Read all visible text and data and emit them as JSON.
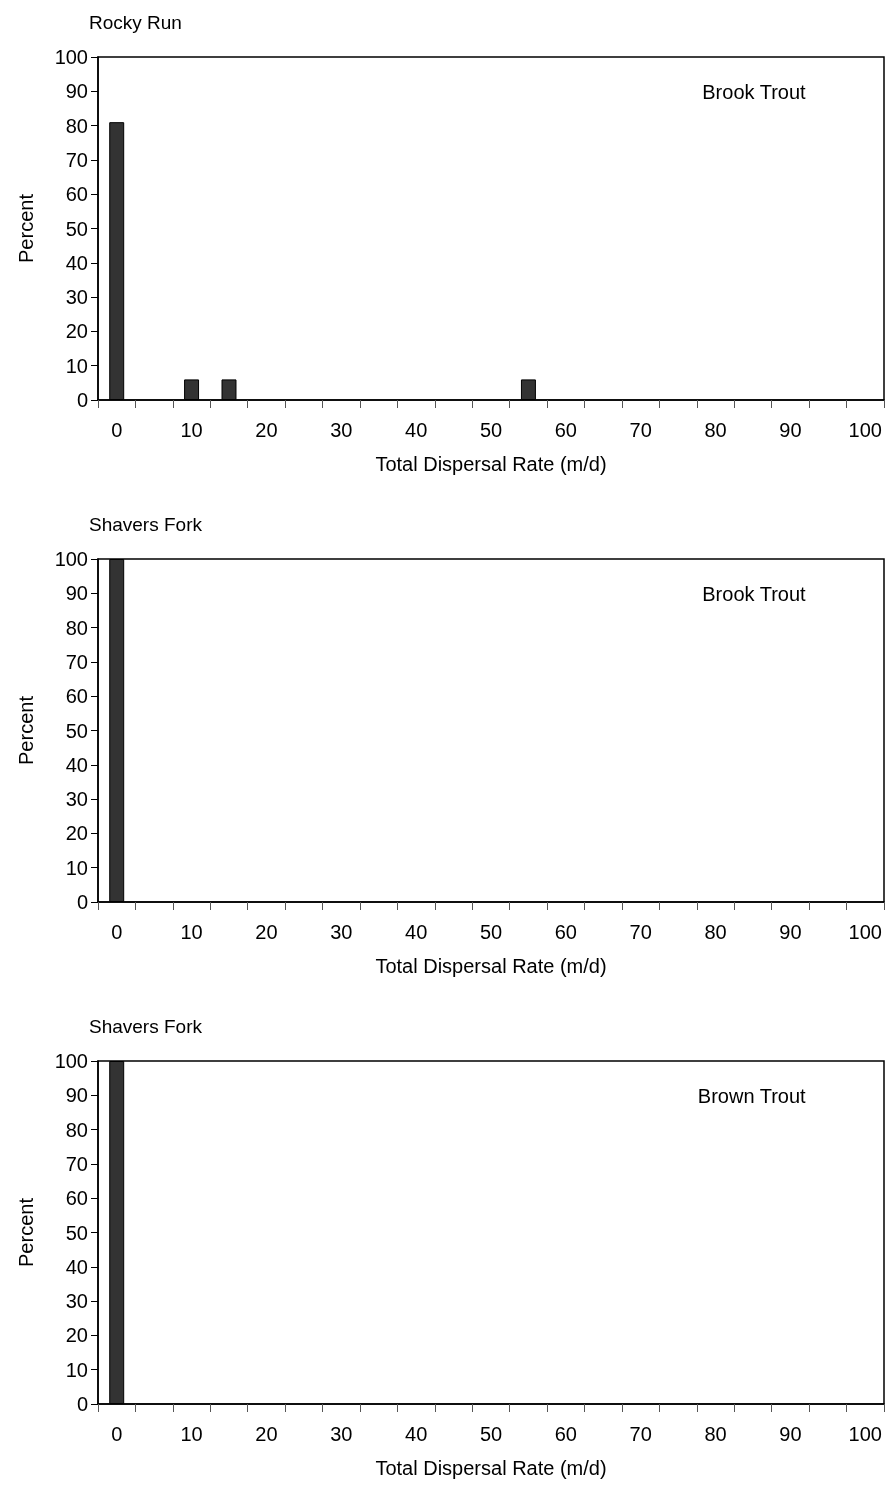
{
  "chart_data": [
    {
      "type": "bar",
      "title": "Rocky Run",
      "xlabel": "Total Dispersal Rate (m/d)",
      "ylabel": "Percent",
      "annotations": [
        "Brook Trout"
      ],
      "categories": [
        "0",
        null,
        "10",
        null,
        "20",
        null,
        "30",
        null,
        "40",
        null,
        "50",
        null,
        "60",
        null,
        "70",
        null,
        "80",
        null,
        "90",
        null,
        "100"
      ],
      "values": [
        81,
        0,
        6,
        6,
        0,
        0,
        0,
        0,
        0,
        0,
        0,
        6,
        0,
        0,
        0,
        0,
        0,
        0,
        0,
        0,
        0
      ],
      "color": "#333333",
      "ylim": [
        0,
        100
      ],
      "yticks": [
        0,
        10,
        20,
        30,
        40,
        50,
        60,
        70,
        80,
        90,
        100
      ]
    },
    {
      "type": "bar",
      "title": "Shavers Fork",
      "xlabel": "Total Dispersal Rate (m/d)",
      "ylabel": "Percent",
      "annotations": [
        "Brook Trout"
      ],
      "categories": [
        "0",
        null,
        "10",
        null,
        "20",
        null,
        "30",
        null,
        "40",
        null,
        "50",
        null,
        "60",
        null,
        "70",
        null,
        "80",
        null,
        "90",
        null,
        "100"
      ],
      "values": [
        100,
        0,
        0,
        0,
        0,
        0,
        0,
        0,
        0,
        0,
        0,
        0,
        0,
        0,
        0,
        0,
        0,
        0,
        0,
        0,
        0
      ],
      "color": "#333333",
      "ylim": [
        0,
        100
      ],
      "yticks": [
        0,
        10,
        20,
        30,
        40,
        50,
        60,
        70,
        80,
        90,
        100
      ]
    },
    {
      "type": "bar",
      "title": "Shavers Fork",
      "xlabel": "Total Dispersal Rate (m/d)",
      "ylabel": "Percent",
      "annotations": [
        "Brown Trout"
      ],
      "categories": [
        "0",
        null,
        "10",
        null,
        "20",
        null,
        "30",
        null,
        "40",
        null,
        "50",
        null,
        "60",
        null,
        "70",
        null,
        "80",
        null,
        "90",
        null,
        "100"
      ],
      "values": [
        100,
        0,
        0,
        0,
        0,
        0,
        0,
        0,
        0,
        0,
        0,
        0,
        0,
        0,
        0,
        0,
        0,
        0,
        0,
        0,
        0
      ],
      "color": "#333333",
      "ylim": [
        0,
        100
      ],
      "yticks": [
        0,
        10,
        20,
        30,
        40,
        50,
        60,
        70,
        80,
        90,
        100
      ]
    }
  ]
}
